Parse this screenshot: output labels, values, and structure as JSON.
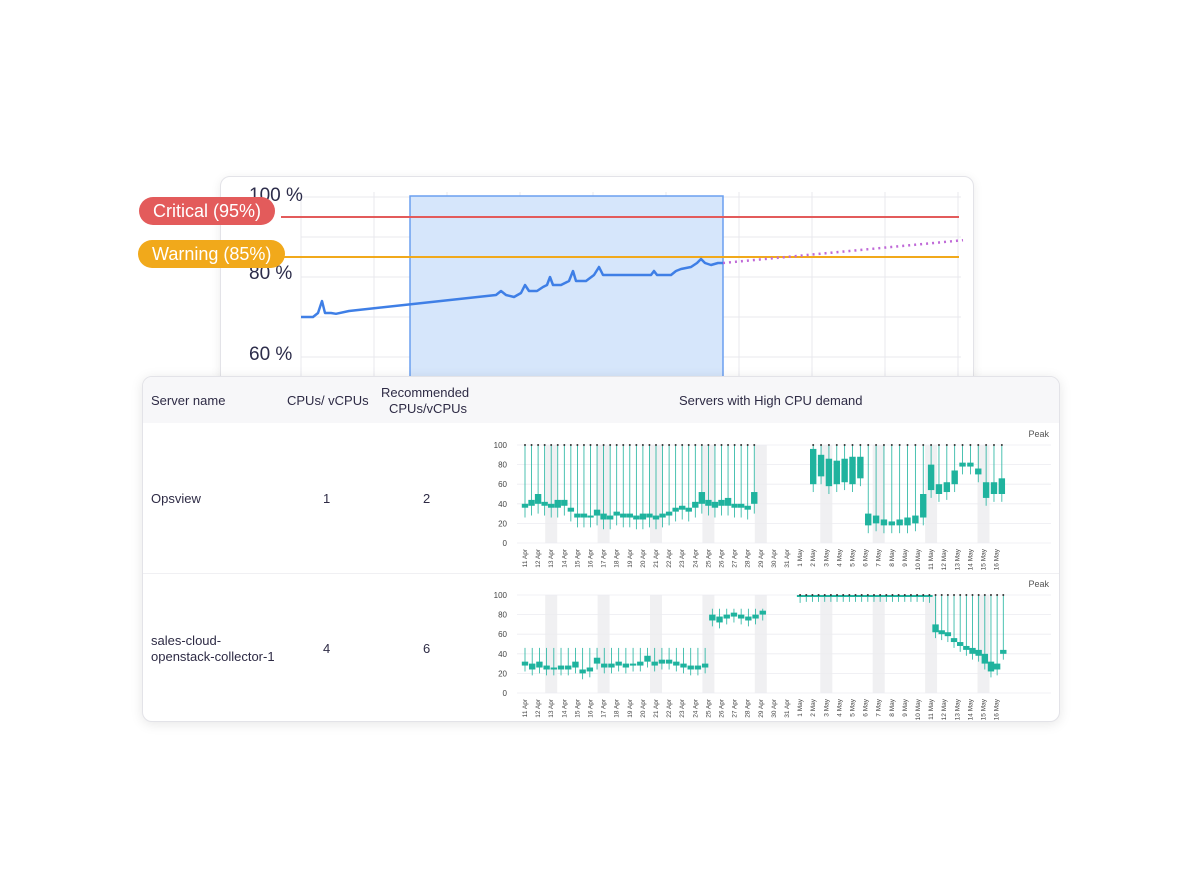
{
  "cpu_chart": {
    "y_ticks": [
      "100 %",
      "80 %",
      "60 %"
    ],
    "thresholds": [
      {
        "label": "Critical (95%)",
        "value": 95,
        "color": "#e35b5b"
      },
      {
        "label": "Warning (85%)",
        "value": 85,
        "color": "#f1a91b"
      }
    ],
    "line_color": "#3f7fe6",
    "forecast_color": "#c06ad8",
    "selection_color": "#d6e6fb"
  },
  "table": {
    "headers": {
      "server_name": "Server name",
      "cpus": "CPUs/ vCPUs",
      "recommended_line1": "Recommended",
      "recommended_line2": "CPUs/vCPUs",
      "demand": "Servers with High CPU demand"
    },
    "rows": [
      {
        "server_name_line1": "Opsview",
        "server_name_line2": "",
        "cpus": "1",
        "recommended": "2"
      },
      {
        "server_name_line1": "sales-cloud-",
        "server_name_line2": "openstack-collector-1",
        "cpus": "4",
        "recommended": "6"
      }
    ],
    "peak_label": "Peak",
    "box_y_ticks": [
      "100",
      "80",
      "60",
      "40",
      "20",
      "0"
    ],
    "box_x_labels": [
      "11 Apr",
      "12 Apr",
      "13 Apr",
      "14 Apr",
      "15 Apr",
      "16 Apr",
      "17 Apr",
      "18 Apr",
      "19 Apr",
      "20 Apr",
      "21 Apr",
      "22 Apr",
      "23 Apr",
      "24 Apr",
      "25 Apr",
      "26 Apr",
      "27 Apr",
      "28 Apr",
      "29 Apr",
      "30 Apr",
      "31 Apr",
      "1 May",
      "2 May",
      "3 May",
      "4 May",
      "5 May",
      "6 May",
      "7 May",
      "8 May",
      "9 May",
      "10 May",
      "11 May",
      "12 May",
      "13 May",
      "14 May",
      "15 May",
      "16 May"
    ],
    "box_color": "#1fb39e"
  }
}
